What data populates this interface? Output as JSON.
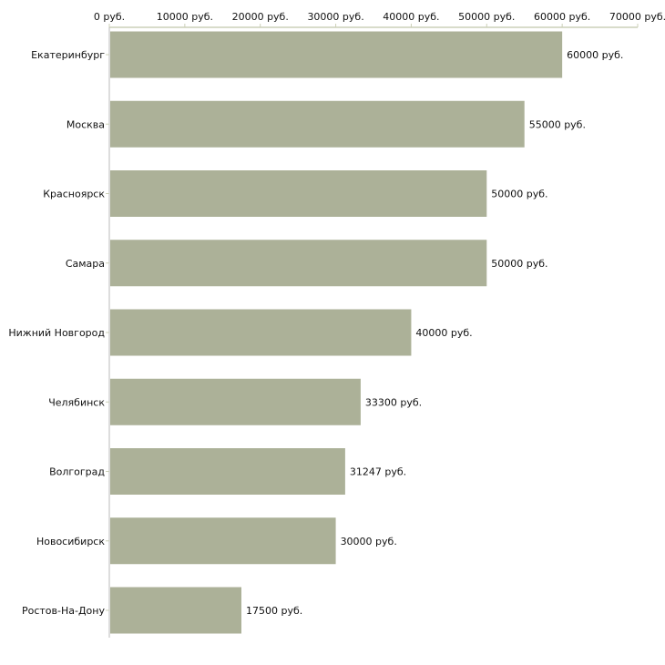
{
  "chart_data": {
    "type": "bar",
    "orientation": "horizontal",
    "title": "",
    "xlabel": "",
    "ylabel": "",
    "categories": [
      "Екатеринбург",
      "Москва",
      "Красноярск",
      "Самара",
      "Нижний Новгород",
      "Челябинск",
      "Волгоград",
      "Новосибирск",
      "Ростов-На-Дону"
    ],
    "values": [
      60000,
      55000,
      50000,
      50000,
      40000,
      33300,
      31247,
      30000,
      17500
    ],
    "value_labels": [
      "60000 руб.",
      "55000 руб.",
      "50000 руб.",
      "50000 руб.",
      "40000 руб.",
      "33300 руб.",
      "31247 руб.",
      "30000 руб.",
      "17500 руб."
    ],
    "xlim": [
      0,
      70000
    ],
    "x_ticks": [
      0,
      10000,
      20000,
      30000,
      40000,
      50000,
      60000,
      70000
    ],
    "x_tick_labels": [
      "0 руб.",
      "10000 руб.",
      "20000 руб.",
      "30000 руб.",
      "40000 руб.",
      "50000 руб.",
      "60000 руб.",
      "70000 руб."
    ],
    "x_axis_position": "top",
    "grid": false,
    "bar_color": "#acb198",
    "axis_color": "#ccd0b8"
  }
}
